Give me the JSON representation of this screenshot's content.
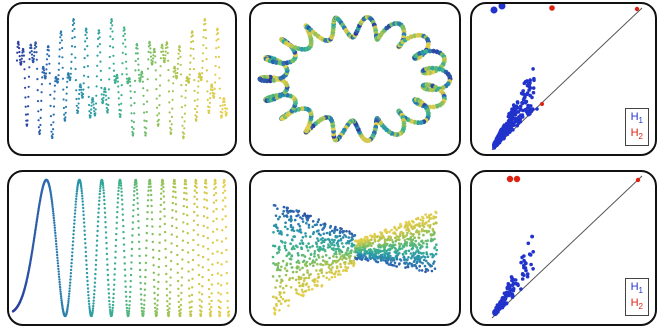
{
  "colors": {
    "viridis": [
      "#2b3a9e",
      "#2c6fb0",
      "#2a9aa8",
      "#3fb38a",
      "#8cc15a",
      "#c9c64a",
      "#e8d04f"
    ],
    "h1": "#2233cc",
    "h2": "#dd2211",
    "diagonal": "#555555",
    "border": "#111111"
  },
  "panels": {
    "top": {
      "signal": {
        "type": "line",
        "description_visible": false
      },
      "cloud": {
        "shape": "torus"
      },
      "persistence": {
        "legend": [
          {
            "base": "H",
            "sub": "1"
          },
          {
            "base": "H",
            "sub": "2"
          }
        ]
      }
    },
    "bottom": {
      "signal": {
        "type": "line"
      },
      "cloud": {
        "shape": "bowtie-surface"
      },
      "persistence": {
        "legend": [
          {
            "base": "H",
            "sub": "1"
          },
          {
            "base": "H",
            "sub": "2"
          }
        ]
      }
    }
  }
}
